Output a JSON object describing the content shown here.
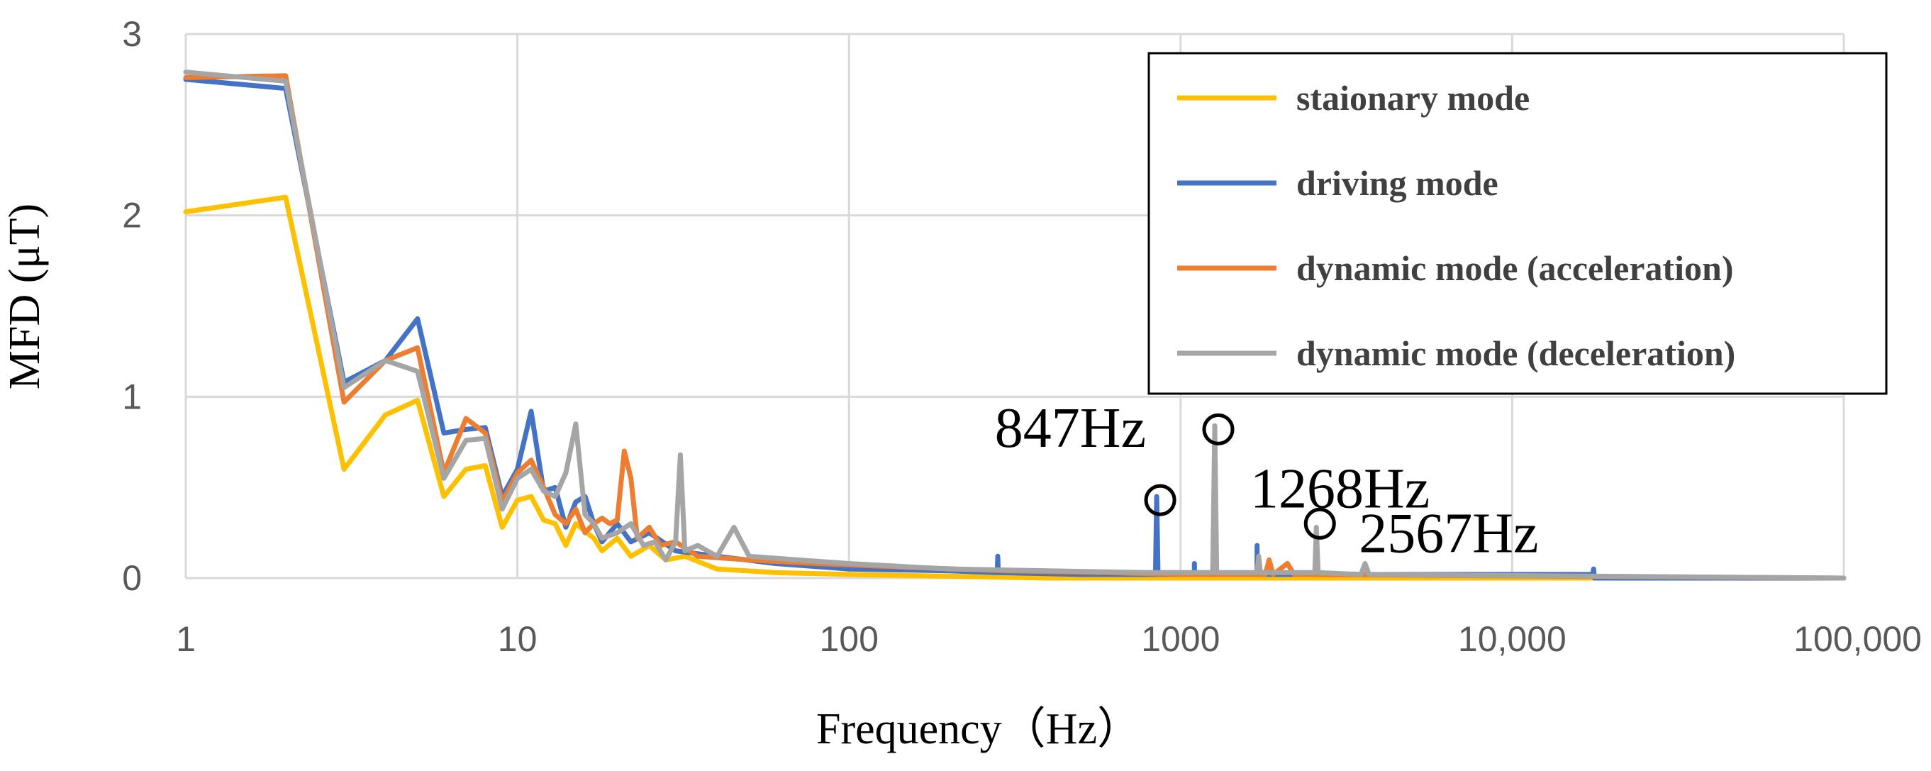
{
  "chart_data": {
    "type": "line",
    "xscale": "log",
    "xlabel": "Frequency（Hz）",
    "ylabel": "MFD (μT)",
    "xlim": [
      1,
      100000
    ],
    "ylim": [
      0,
      3
    ],
    "grid": true,
    "legend_position": "top-right",
    "xticks": [
      {
        "value": 1,
        "label": "1"
      },
      {
        "value": 10,
        "label": "10"
      },
      {
        "value": 100,
        "label": "100"
      },
      {
        "value": 1000,
        "label": "1000"
      },
      {
        "value": 10000,
        "label": "10,000"
      },
      {
        "value": 100000,
        "label": "100,000"
      }
    ],
    "yticks": [
      {
        "value": 0,
        "label": "0"
      },
      {
        "value": 1,
        "label": "1"
      },
      {
        "value": 2,
        "label": "2"
      },
      {
        "value": 3,
        "label": "3"
      }
    ],
    "series": [
      {
        "name": "staionary mode",
        "color": "#ffc000",
        "points": [
          [
            1,
            2.02
          ],
          [
            2,
            2.1
          ],
          [
            3,
            0.6
          ],
          [
            4,
            0.9
          ],
          [
            5,
            0.98
          ],
          [
            6,
            0.45
          ],
          [
            7,
            0.6
          ],
          [
            8,
            0.62
          ],
          [
            9,
            0.28
          ],
          [
            10,
            0.43
          ],
          [
            11,
            0.45
          ],
          [
            12,
            0.32
          ],
          [
            13,
            0.3
          ],
          [
            14,
            0.18
          ],
          [
            15,
            0.3
          ],
          [
            17,
            0.22
          ],
          [
            18,
            0.15
          ],
          [
            20,
            0.22
          ],
          [
            22,
            0.12
          ],
          [
            25,
            0.18
          ],
          [
            28,
            0.1
          ],
          [
            32,
            0.12
          ],
          [
            40,
            0.05
          ],
          [
            60,
            0.03
          ],
          [
            100,
            0.02
          ],
          [
            200,
            0.01
          ],
          [
            400,
            0.0
          ],
          [
            100000,
            0.0
          ]
        ]
      },
      {
        "name": "driving mode",
        "color": "#4472c4",
        "points": [
          [
            1,
            2.75
          ],
          [
            2,
            2.7
          ],
          [
            3,
            1.08
          ],
          [
            4,
            1.2
          ],
          [
            5,
            1.43
          ],
          [
            6,
            0.8
          ],
          [
            7,
            0.82
          ],
          [
            8,
            0.83
          ],
          [
            9,
            0.45
          ],
          [
            10,
            0.6
          ],
          [
            11,
            0.92
          ],
          [
            12,
            0.48
          ],
          [
            13,
            0.5
          ],
          [
            14,
            0.28
          ],
          [
            15,
            0.42
          ],
          [
            16,
            0.45
          ],
          [
            17,
            0.3
          ],
          [
            18,
            0.2
          ],
          [
            20,
            0.3
          ],
          [
            22,
            0.2
          ],
          [
            25,
            0.25
          ],
          [
            30,
            0.15
          ],
          [
            40,
            0.12
          ],
          [
            60,
            0.08
          ],
          [
            100,
            0.05
          ],
          [
            200,
            0.04
          ],
          [
            280,
            0.03
          ],
          [
            281,
            0.12
          ],
          [
            282,
            0.03
          ],
          [
            500,
            0.02
          ],
          [
            840,
            0.02
          ],
          [
            847,
            0.45
          ],
          [
            855,
            0.02
          ],
          [
            1000,
            0.02
          ],
          [
            1100,
            0.02
          ],
          [
            1101,
            0.08
          ],
          [
            1102,
            0.02
          ],
          [
            1700,
            0.02
          ],
          [
            1701,
            0.18
          ],
          [
            1702,
            0.02
          ],
          [
            17500,
            0.02
          ],
          [
            17600,
            0.05
          ],
          [
            17700,
            0.0
          ],
          [
            100000,
            0.0
          ]
        ]
      },
      {
        "name": "dynamic mode (acceleration)",
        "color": "#ed7d31",
        "points": [
          [
            1,
            2.76
          ],
          [
            2,
            2.77
          ],
          [
            3,
            0.97
          ],
          [
            4,
            1.2
          ],
          [
            5,
            1.27
          ],
          [
            6,
            0.58
          ],
          [
            7,
            0.88
          ],
          [
            8,
            0.8
          ],
          [
            9,
            0.42
          ],
          [
            10,
            0.58
          ],
          [
            11,
            0.65
          ],
          [
            12,
            0.5
          ],
          [
            13,
            0.35
          ],
          [
            14,
            0.3
          ],
          [
            15,
            0.38
          ],
          [
            16,
            0.25
          ],
          [
            17,
            0.3
          ],
          [
            18,
            0.33
          ],
          [
            19,
            0.3
          ],
          [
            20,
            0.32
          ],
          [
            21,
            0.7
          ],
          [
            22,
            0.55
          ],
          [
            23,
            0.22
          ],
          [
            25,
            0.28
          ],
          [
            27,
            0.18
          ],
          [
            30,
            0.2
          ],
          [
            35,
            0.12
          ],
          [
            50,
            0.1
          ],
          [
            80,
            0.08
          ],
          [
            150,
            0.06
          ],
          [
            300,
            0.04
          ],
          [
            600,
            0.03
          ],
          [
            1000,
            0.02
          ],
          [
            1800,
            0.02
          ],
          [
            1850,
            0.1
          ],
          [
            1900,
            0.02
          ],
          [
            2100,
            0.08
          ],
          [
            2200,
            0.02
          ],
          [
            100000,
            0.0
          ]
        ]
      },
      {
        "name": "dynamic mode (deceleration)",
        "color": "#a5a5a5",
        "points": [
          [
            1,
            2.79
          ],
          [
            2,
            2.74
          ],
          [
            3,
            1.05
          ],
          [
            4,
            1.2
          ],
          [
            5,
            1.14
          ],
          [
            6,
            0.55
          ],
          [
            7,
            0.76
          ],
          [
            8,
            0.77
          ],
          [
            9,
            0.38
          ],
          [
            10,
            0.55
          ],
          [
            11,
            0.6
          ],
          [
            12,
            0.48
          ],
          [
            13,
            0.45
          ],
          [
            14,
            0.58
          ],
          [
            15,
            0.85
          ],
          [
            16,
            0.35
          ],
          [
            17,
            0.3
          ],
          [
            18,
            0.22
          ],
          [
            20,
            0.25
          ],
          [
            22,
            0.3
          ],
          [
            24,
            0.18
          ],
          [
            26,
            0.2
          ],
          [
            28,
            0.1
          ],
          [
            30,
            0.2
          ],
          [
            31,
            0.68
          ],
          [
            32,
            0.15
          ],
          [
            35,
            0.18
          ],
          [
            40,
            0.12
          ],
          [
            45,
            0.28
          ],
          [
            50,
            0.12
          ],
          [
            70,
            0.1
          ],
          [
            100,
            0.08
          ],
          [
            200,
            0.05
          ],
          [
            400,
            0.04
          ],
          [
            800,
            0.03
          ],
          [
            1250,
            0.03
          ],
          [
            1268,
            0.84
          ],
          [
            1285,
            0.03
          ],
          [
            1700,
            0.03
          ],
          [
            1720,
            0.12
          ],
          [
            1740,
            0.03
          ],
          [
            2540,
            0.03
          ],
          [
            2567,
            0.28
          ],
          [
            2600,
            0.03
          ],
          [
            3500,
            0.02
          ],
          [
            3600,
            0.08
          ],
          [
            3700,
            0.02
          ],
          [
            100000,
            0.0
          ]
        ]
      }
    ],
    "annotations": [
      {
        "label": "847Hz",
        "x": 847,
        "y": 0.43
      },
      {
        "label": "1268Hz",
        "x": 1268,
        "y": 0.82
      },
      {
        "label": "2567Hz",
        "x": 2567,
        "y": 0.3
      }
    ]
  }
}
